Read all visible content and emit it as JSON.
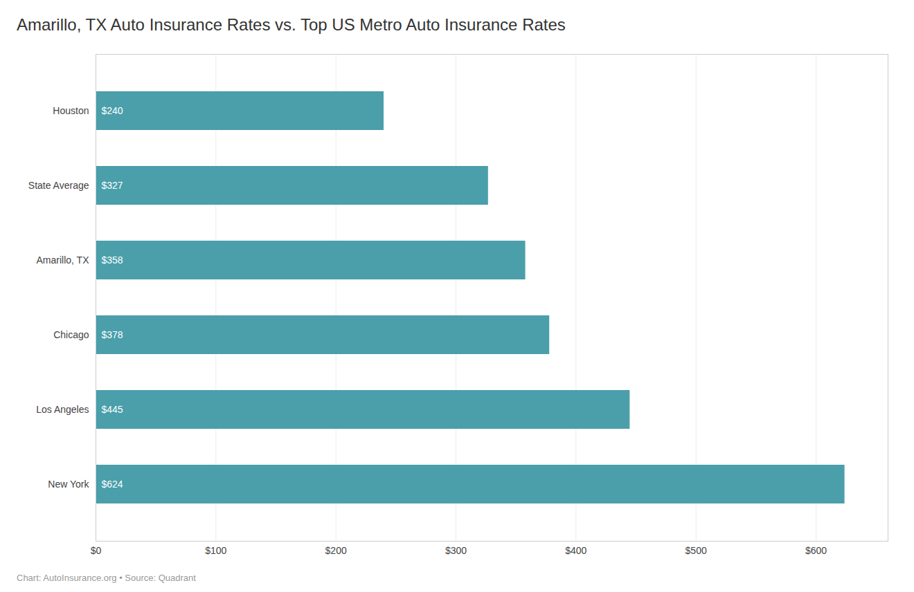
{
  "chart_data": {
    "type": "bar",
    "orientation": "horizontal",
    "title": "Amarillo, TX Auto Insurance Rates vs. Top US Metro Auto Insurance Rates",
    "caption": "Chart: AutoInsurance.org • Source: Quadrant",
    "categories": [
      "New York",
      "Los Angeles",
      "Chicago",
      "Amarillo, TX",
      "State Average",
      "Houston"
    ],
    "values": [
      624,
      445,
      378,
      358,
      327,
      240
    ],
    "value_labels": [
      "$624",
      "$445",
      "$378",
      "$358",
      "$327",
      "$240"
    ],
    "data_labels": true,
    "color": "#4a9faa",
    "xlim": [
      0,
      660
    ],
    "xticks": [
      {
        "value": 0,
        "label": "$0"
      },
      {
        "value": 100,
        "label": "$100"
      },
      {
        "value": 200,
        "label": "$200"
      },
      {
        "value": 300,
        "label": "$300"
      },
      {
        "value": 400,
        "label": "$400"
      },
      {
        "value": 500,
        "label": "$500"
      },
      {
        "value": 600,
        "label": "$600"
      }
    ],
    "grid": true
  }
}
